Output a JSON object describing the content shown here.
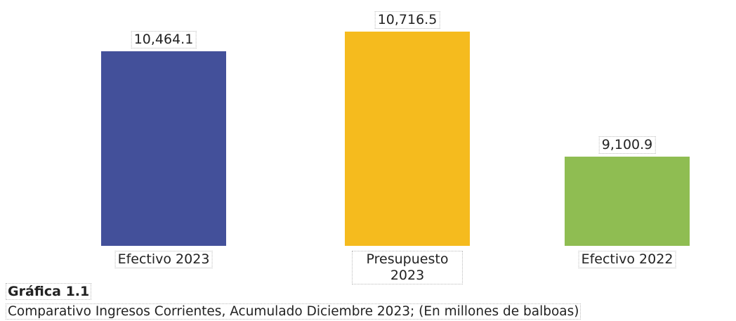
{
  "chart_data": {
    "type": "bar",
    "title": "Gráfica 1.1",
    "subtitle": "Comparativo Ingresos Corrientes, Acumulado Diciembre 2023; (En millones de balboas)",
    "categories": [
      "Efectivo 2023",
      "Presupuesto 2023",
      "Efectivo 2022"
    ],
    "values": [
      10464.1,
      10716.5,
      9100.9
    ],
    "value_labels": [
      "10,464.1",
      "10,716.5",
      "9,100.9"
    ],
    "colors": [
      "#43509a",
      "#f5bb1e",
      "#8fbd52"
    ],
    "ylim": [
      7950,
      10800
    ]
  }
}
